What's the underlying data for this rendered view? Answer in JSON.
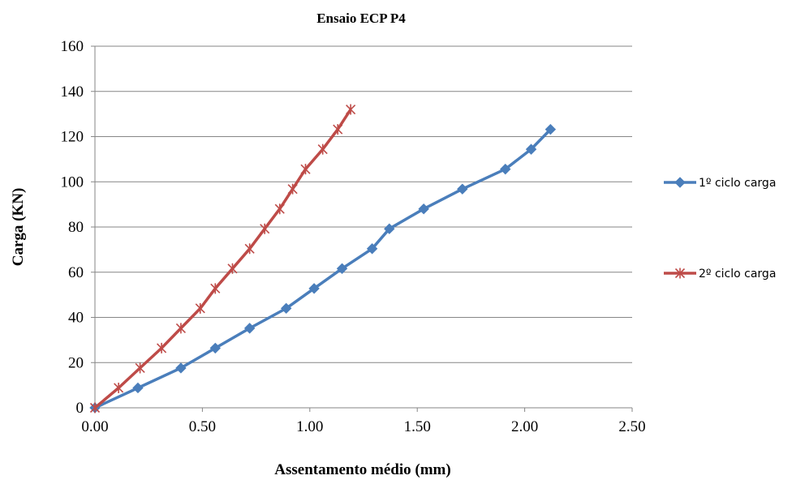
{
  "chart_data": {
    "type": "line",
    "title": "Ensaio ECP P4",
    "xlabel": "Assentamento médio (mm)",
    "ylabel": "Carga (KN)",
    "xlim": [
      0,
      2.5
    ],
    "ylim": [
      0,
      160
    ],
    "xticks": [
      "0.00",
      "0.50",
      "1.00",
      "1.50",
      "2.00",
      "2.50"
    ],
    "yticks": [
      "0",
      "20",
      "40",
      "60",
      "80",
      "100",
      "120",
      "140",
      "160"
    ],
    "grid": "horizontal",
    "legend_position": "right",
    "series": [
      {
        "name": "1º ciclo carga",
        "color": "#4a7ebb",
        "marker": "diamond",
        "x": [
          0.0,
          0.2,
          0.4,
          0.56,
          0.72,
          0.89,
          1.02,
          1.15,
          1.29,
          1.37,
          1.53,
          1.71,
          1.91,
          2.03,
          2.12
        ],
        "y": [
          0,
          8.8,
          17.6,
          26.4,
          35.2,
          44.0,
          52.8,
          61.6,
          70.4,
          79.2,
          88.0,
          96.8,
          105.6,
          114.4,
          123.2
        ]
      },
      {
        "name": "2º ciclo carga",
        "color": "#be4b48",
        "marker": "asterisk",
        "x": [
          0.0,
          0.11,
          0.21,
          0.31,
          0.4,
          0.49,
          0.56,
          0.64,
          0.72,
          0.79,
          0.86,
          0.92,
          0.98,
          1.06,
          1.13,
          1.19
        ],
        "y": [
          0,
          8.8,
          17.6,
          26.4,
          35.2,
          44.0,
          52.8,
          61.6,
          70.4,
          79.2,
          88.0,
          96.8,
          105.6,
          114.4,
          123.2,
          132.0
        ]
      }
    ]
  }
}
